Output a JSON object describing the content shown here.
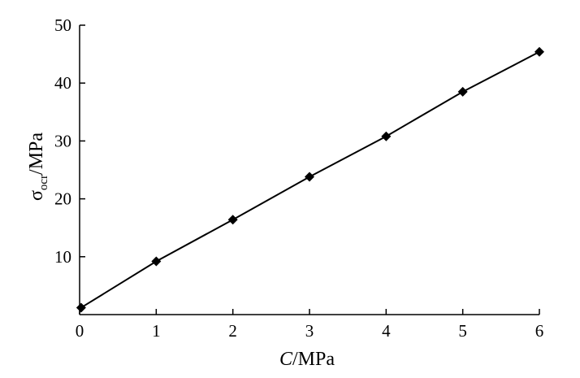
{
  "chart_data": {
    "type": "line",
    "title": "",
    "xlabel": {
      "italic": "C",
      "rest": "/MPa"
    },
    "ylabel": {
      "base": "σ",
      "sub": "ocr",
      "rest": "/MPa"
    },
    "xlim": [
      0,
      6
    ],
    "ylim": [
      0,
      50
    ],
    "xticks": [
      0,
      1,
      2,
      3,
      4,
      5,
      6
    ],
    "yticks": [
      10,
      20,
      30,
      40,
      50
    ],
    "grid": false,
    "marker": "diamond",
    "color": "#000000",
    "series": [
      {
        "x": [
          0.02,
          1,
          2,
          3,
          4,
          5,
          6
        ],
        "y": [
          1.2,
          9.2,
          16.4,
          23.8,
          30.8,
          38.5,
          45.4
        ]
      }
    ]
  }
}
